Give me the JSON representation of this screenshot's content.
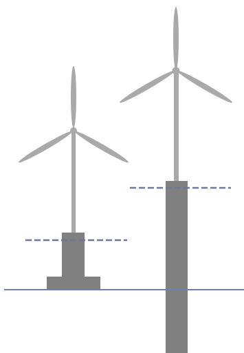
{
  "colors": {
    "background": "#ffffff",
    "tower": "#a9a9a9",
    "blade": "#a9a9a9",
    "hub": "#a9a9a9",
    "foundation": "#808080",
    "ground_line": "#7282a6",
    "water_level": "#6e7898"
  },
  "diagram": {
    "ground_line": {
      "style": "solid"
    },
    "turbines": [
      {
        "name": "shallow-foundation-turbine",
        "foundation_type": "gravity base",
        "water_level_line": {
          "style": "dashed"
        }
      },
      {
        "name": "monopile-turbine",
        "foundation_type": "monopile",
        "water_level_line": {
          "style": "dashed"
        }
      }
    ]
  }
}
